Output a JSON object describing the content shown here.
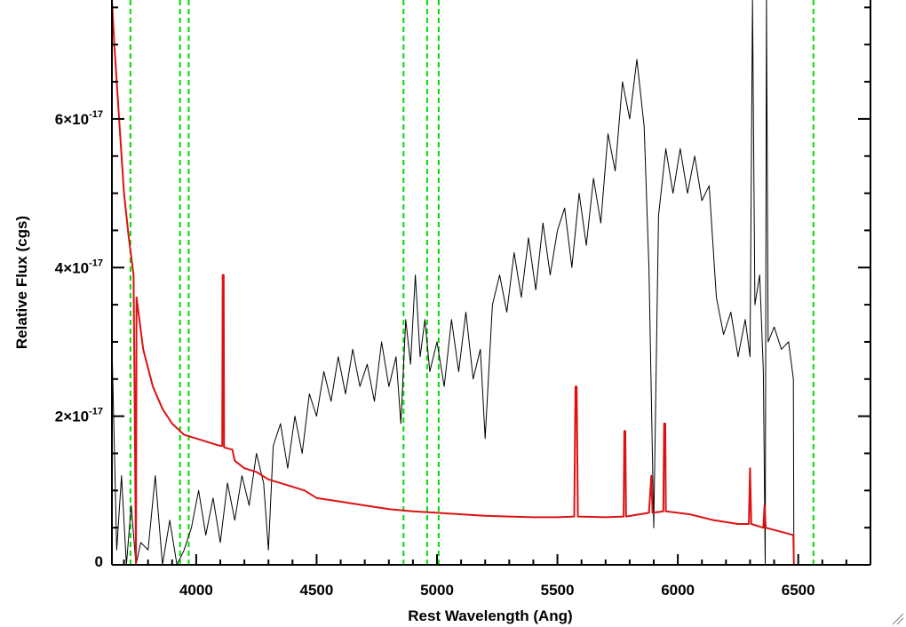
{
  "chart_data": {
    "type": "line",
    "title": "",
    "xlabel": "Rest Wavelength (Ang)",
    "ylabel": "Relative Flux (cgs)",
    "xlim": [
      3650,
      6800
    ],
    "ylim": [
      0,
      7.6e-17
    ],
    "x_ticks": [
      4000,
      4500,
      5000,
      5500,
      6000,
      6500
    ],
    "x_tick_labels": [
      "4000",
      "4500",
      "5000",
      "5500",
      "6000",
      "6500"
    ],
    "y_ticks": [
      {
        "value": 0,
        "mantissa": "0",
        "exponent": ""
      },
      {
        "value": 2e-17,
        "mantissa": "2×10",
        "exponent": "-17"
      },
      {
        "value": 4e-17,
        "mantissa": "4×10",
        "exponent": "-17"
      },
      {
        "value": 6e-17,
        "mantissa": "6×10",
        "exponent": "-17"
      }
    ],
    "vertical_lines": {
      "color": "#00dd00",
      "style": "dashed",
      "x": [
        3727,
        3933,
        3969,
        4861,
        4959,
        5007,
        6563
      ]
    },
    "series": [
      {
        "color": "#000000",
        "points": [
          [
            3650,
            3e-17
          ],
          [
            3670,
            2e-18
          ],
          [
            3690,
            1.2e-17
          ],
          [
            3710,
            0.0
          ],
          [
            3730,
            8e-18
          ],
          [
            3750,
            0.0
          ],
          [
            3770,
            3e-18
          ],
          [
            3800,
            2e-18
          ],
          [
            3830,
            1.2e-17
          ],
          [
            3860,
            0.0
          ],
          [
            3890,
            6e-18
          ],
          [
            3920,
            0.0
          ],
          [
            3950,
            2e-18
          ],
          [
            3980,
            5e-18
          ],
          [
            4010,
            1e-17
          ],
          [
            4040,
            4e-18
          ],
          [
            4070,
            9e-18
          ],
          [
            4100,
            3e-18
          ],
          [
            4130,
            1.1e-17
          ],
          [
            4160,
            6e-18
          ],
          [
            4190,
            1.2e-17
          ],
          [
            4220,
            8e-18
          ],
          [
            4250,
            1.5e-17
          ],
          [
            4280,
            1.1e-17
          ],
          [
            4300,
            2e-18
          ],
          [
            4320,
            1.6e-17
          ],
          [
            4350,
            1.9e-17
          ],
          [
            4380,
            1.3e-17
          ],
          [
            4410,
            2e-17
          ],
          [
            4440,
            1.5e-17
          ],
          [
            4470,
            2.3e-17
          ],
          [
            4500,
            2e-17
          ],
          [
            4530,
            2.6e-17
          ],
          [
            4560,
            2.2e-17
          ],
          [
            4590,
            2.8e-17
          ],
          [
            4620,
            2.3e-17
          ],
          [
            4650,
            2.9e-17
          ],
          [
            4680,
            2.4e-17
          ],
          [
            4710,
            2.7e-17
          ],
          [
            4740,
            2.2e-17
          ],
          [
            4770,
            3e-17
          ],
          [
            4800,
            2.4e-17
          ],
          [
            4830,
            2.8e-17
          ],
          [
            4850,
            1.9e-17
          ],
          [
            4870,
            3.3e-17
          ],
          [
            4890,
            2.7e-17
          ],
          [
            4910,
            3.9e-17
          ],
          [
            4930,
            2.8e-17
          ],
          [
            4950,
            3.3e-17
          ],
          [
            4970,
            2.6e-17
          ],
          [
            5000,
            3e-17
          ],
          [
            5030,
            2.4e-17
          ],
          [
            5060,
            3.3e-17
          ],
          [
            5090,
            2.6e-17
          ],
          [
            5120,
            3.4e-17
          ],
          [
            5150,
            2.5e-17
          ],
          [
            5180,
            2.9e-17
          ],
          [
            5200,
            1.7e-17
          ],
          [
            5230,
            3.5e-17
          ],
          [
            5260,
            3.9e-17
          ],
          [
            5290,
            3.4e-17
          ],
          [
            5320,
            4.2e-17
          ],
          [
            5350,
            3.6e-17
          ],
          [
            5380,
            4.4e-17
          ],
          [
            5410,
            3.7e-17
          ],
          [
            5440,
            4.6e-17
          ],
          [
            5470,
            3.9e-17
          ],
          [
            5500,
            4.5e-17
          ],
          [
            5530,
            4.8e-17
          ],
          [
            5560,
            4e-17
          ],
          [
            5590,
            5e-17
          ],
          [
            5620,
            4.3e-17
          ],
          [
            5650,
            5.2e-17
          ],
          [
            5680,
            4.6e-17
          ],
          [
            5710,
            5.8e-17
          ],
          [
            5740,
            5.3e-17
          ],
          [
            5770,
            6.5e-17
          ],
          [
            5800,
            6e-17
          ],
          [
            5830,
            6.8e-17
          ],
          [
            5860,
            5.9e-17
          ],
          [
            5880,
            4e-17
          ],
          [
            5900,
            5e-18
          ],
          [
            5920,
            4.7e-17
          ],
          [
            5950,
            5.6e-17
          ],
          [
            5980,
            5e-17
          ],
          [
            6010,
            5.6e-17
          ],
          [
            6040,
            5e-17
          ],
          [
            6070,
            5.5e-17
          ],
          [
            6100,
            4.9e-17
          ],
          [
            6130,
            5.1e-17
          ],
          [
            6160,
            3.6e-17
          ],
          [
            6190,
            3.1e-17
          ],
          [
            6220,
            3.4e-17
          ],
          [
            6250,
            2.8e-17
          ],
          [
            6280,
            3.3e-17
          ],
          [
            6300,
            2.8e-17
          ],
          [
            6310,
            7.6e-17
          ],
          [
            6320,
            3.5e-17
          ],
          [
            6340,
            3.9e-17
          ],
          [
            6355,
            2.6e-17
          ],
          [
            6363,
            0.0
          ],
          [
            6368,
            7.6e-17
          ],
          [
            6375,
            3e-17
          ],
          [
            6400,
            3.2e-17
          ],
          [
            6430,
            2.9e-17
          ],
          [
            6460,
            3e-17
          ],
          [
            6480,
            2.5e-17
          ],
          [
            6482,
            0.0
          ],
          [
            6800,
            0.0
          ]
        ]
      },
      {
        "color": "#dd1111",
        "points": [
          [
            3650,
            7.6e-17
          ],
          [
            3660,
            7e-17
          ],
          [
            3680,
            6e-17
          ],
          [
            3700,
            5e-17
          ],
          [
            3720,
            4.4e-17
          ],
          [
            3740,
            3.9e-17
          ],
          [
            3750,
            0.0
          ],
          [
            3752,
            3.6e-17
          ],
          [
            3780,
            2.9e-17
          ],
          [
            3820,
            2.4e-17
          ],
          [
            3860,
            2.1e-17
          ],
          [
            3900,
            1.9e-17
          ],
          [
            3950,
            1.75e-17
          ],
          [
            4000,
            1.7e-17
          ],
          [
            4050,
            1.65e-17
          ],
          [
            4100,
            1.6e-17
          ],
          [
            4108,
            1.6e-17
          ],
          [
            4110,
            3.9e-17
          ],
          [
            4114,
            3.9e-17
          ],
          [
            4116,
            1.58e-17
          ],
          [
            4150,
            1.55e-17
          ],
          [
            4160,
            1.4e-17
          ],
          [
            4200,
            1.3e-17
          ],
          [
            4250,
            1.25e-17
          ],
          [
            4300,
            1.15e-17
          ],
          [
            4350,
            1.1e-17
          ],
          [
            4400,
            1.05e-17
          ],
          [
            4450,
            1e-17
          ],
          [
            4500,
            9e-18
          ],
          [
            4600,
            8.5e-18
          ],
          [
            4700,
            8e-18
          ],
          [
            4800,
            7.5e-18
          ],
          [
            4900,
            7.2e-18
          ],
          [
            5000,
            7e-18
          ],
          [
            5100,
            6.8e-18
          ],
          [
            5200,
            6.6e-18
          ],
          [
            5300,
            6.5e-18
          ],
          [
            5400,
            6.4e-18
          ],
          [
            5500,
            6.4e-18
          ],
          [
            5570,
            6.5e-18
          ],
          [
            5575,
            2.4e-17
          ],
          [
            5580,
            2.4e-17
          ],
          [
            5585,
            6.5e-18
          ],
          [
            5700,
            6.4e-18
          ],
          [
            5775,
            6.5e-18
          ],
          [
            5778,
            1.8e-17
          ],
          [
            5782,
            1.8e-17
          ],
          [
            5785,
            6.5e-18
          ],
          [
            5880,
            7e-18
          ],
          [
            5890,
            1.2e-17
          ],
          [
            5895,
            7e-18
          ],
          [
            5940,
            7.2e-18
          ],
          [
            5943,
            1.9e-17
          ],
          [
            5948,
            1.9e-17
          ],
          [
            5950,
            7.2e-18
          ],
          [
            6050,
            6.8e-18
          ],
          [
            6150,
            6e-18
          ],
          [
            6250,
            5.5e-18
          ],
          [
            6295,
            5.5e-18
          ],
          [
            6300,
            1.3e-17
          ],
          [
            6305,
            5.5e-18
          ],
          [
            6355,
            5e-18
          ],
          [
            6360,
            8e-18
          ],
          [
            6365,
            5e-18
          ],
          [
            6480,
            4e-18
          ],
          [
            6482,
            0.0
          ],
          [
            6800,
            0.0
          ]
        ]
      }
    ]
  }
}
